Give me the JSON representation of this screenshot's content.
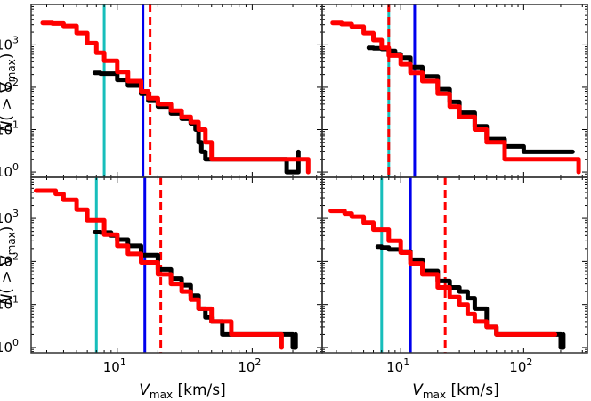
{
  "chart_data": {
    "type": "line",
    "xscale": "log",
    "yscale": "log",
    "xlim": [
      2.3,
      330
    ],
    "ylim": [
      0.75,
      9000
    ],
    "x_ticks": [
      {
        "value": 10,
        "label": "10",
        "sup": "1"
      },
      {
        "value": 100,
        "label": "10",
        "sup": "2"
      }
    ],
    "y_ticks": [
      {
        "value": 1,
        "label": "10",
        "sup": "0"
      },
      {
        "value": 10,
        "label": "10",
        "sup": "1"
      },
      {
        "value": 100,
        "label": "10",
        "sup": "2"
      },
      {
        "value": 1000,
        "label": "10",
        "sup": "3"
      }
    ],
    "xlabel": {
      "main": "V",
      "sub": "max",
      "units": " [km/s]"
    },
    "ylabel": {
      "main": "N( > V",
      "sub": "max",
      "close": ")"
    },
    "colors": {
      "black": "#000000",
      "red": "#ff0000",
      "cyan": "#17bebb",
      "blue": "#0000ee"
    },
    "panels": [
      {
        "name": "top-left",
        "vlines": {
          "cyan": 8.0,
          "blue": 15.5,
          "red_dashed": 17.5
        },
        "series": [
          {
            "name": "black",
            "color": "#000000",
            "x": [
              6.8,
              7.5,
              10,
              12,
              15,
              17,
              20,
              25,
              30,
              35,
              38,
              40,
              42,
              45,
              50,
              60,
              80,
              120,
              180,
              210,
              220
            ],
            "y": [
              220,
              210,
              150,
              110,
              70,
              48,
              35,
              24,
              18,
              14,
              10,
              5,
              3,
              2,
              2,
              2,
              2,
              2,
              1,
              1,
              3
            ]
          },
          {
            "name": "red",
            "color": "#ff0000",
            "x": [
              2.8,
              3.3,
              4,
              5,
              6,
              7,
              8,
              10,
              12,
              15,
              17,
              20,
              25,
              30,
              35,
              40,
              45,
              50,
              60,
              80,
              120,
              200,
              250,
              260
            ],
            "y": [
              3300,
              3200,
              2800,
              1900,
              1100,
              650,
              420,
              230,
              140,
              80,
              55,
              40,
              28,
              20,
              15,
              10,
              5,
              2,
              2,
              2,
              2,
              2,
              2,
              1
            ]
          }
        ]
      },
      {
        "name": "top-right",
        "vlines": {
          "cyan": 8.0,
          "blue": 13.0,
          "red_dashed": 8.0
        },
        "series": [
          {
            "name": "black",
            "color": "#000000",
            "x": [
              5.5,
              6,
              7,
              8,
              9,
              10,
              12,
              15,
              20,
              25,
              30,
              40,
              50,
              70,
              100,
              150,
              200,
              250
            ],
            "y": [
              850,
              830,
              800,
              720,
              600,
              500,
              300,
              180,
              90,
              45,
              25,
              12,
              6,
              4,
              3,
              3,
              3,
              3
            ]
          },
          {
            "name": "red",
            "color": "#ff0000",
            "x": [
              2.8,
              3.3,
              4,
              5,
              6,
              7,
              8,
              10,
              12,
              15,
              20,
              25,
              30,
              40,
              50,
              70,
              100,
              150,
              250,
              280
            ],
            "y": [
              3300,
              3100,
              2700,
              1900,
              1300,
              850,
              560,
              350,
              220,
              140,
              70,
              35,
              20,
              10,
              5,
              2,
              2,
              2,
              2,
              1
            ]
          }
        ]
      },
      {
        "name": "bottom-left",
        "vlines": {
          "cyan": 7.0,
          "blue": 16.0,
          "red_dashed": 21.0
        },
        "series": [
          {
            "name": "black",
            "color": "#000000",
            "x": [
              6.8,
              7.5,
              9,
              10,
              12,
              15,
              20,
              25,
              30,
              35,
              40,
              45,
              50,
              60,
              80,
              120,
              180,
              200,
              210
            ],
            "y": [
              480,
              470,
              400,
              320,
              230,
              140,
              65,
              40,
              28,
              16,
              8,
              5,
              4,
              2,
              2,
              2,
              2,
              1,
              2
            ]
          },
          {
            "name": "red",
            "color": "#ff0000",
            "x": [
              2.5,
              3,
              3.5,
              4,
              5,
              6,
              8,
              10,
              12,
              15,
              20,
              25,
              30,
              35,
              40,
              50,
              70,
              100,
              150,
              165
            ],
            "y": [
              4400,
              4400,
              3700,
              2700,
              1600,
              900,
              420,
              230,
              150,
              95,
              50,
              30,
              20,
              13,
              8,
              4,
              2,
              2,
              2,
              1
            ]
          }
        ]
      },
      {
        "name": "bottom-right",
        "vlines": {
          "cyan": 7.0,
          "blue": 12.0,
          "red_dashed": 23.0
        },
        "series": [
          {
            "name": "black",
            "color": "#000000",
            "x": [
              6.5,
              7,
              8,
              10,
              12,
              15,
              20,
              25,
              30,
              35,
              40,
              50,
              60,
              100,
              150,
              200,
              210
            ],
            "y": [
              220,
              210,
              190,
              170,
              110,
              60,
              35,
              25,
              20,
              14,
              8,
              3,
              2,
              2,
              2,
              1,
              2
            ]
          },
          {
            "name": "red",
            "color": "#ff0000",
            "x": [
              2.7,
              3,
              3.5,
              4,
              5,
              6,
              8,
              10,
              12,
              15,
              20,
              25,
              30,
              35,
              40,
              50,
              60,
              80,
              120,
              180
            ],
            "y": [
              1500,
              1500,
              1300,
              1100,
              800,
              550,
              300,
              160,
              90,
              50,
              25,
              15,
              10,
              6,
              4,
              3,
              2,
              2,
              2,
              2
            ]
          }
        ]
      }
    ]
  }
}
